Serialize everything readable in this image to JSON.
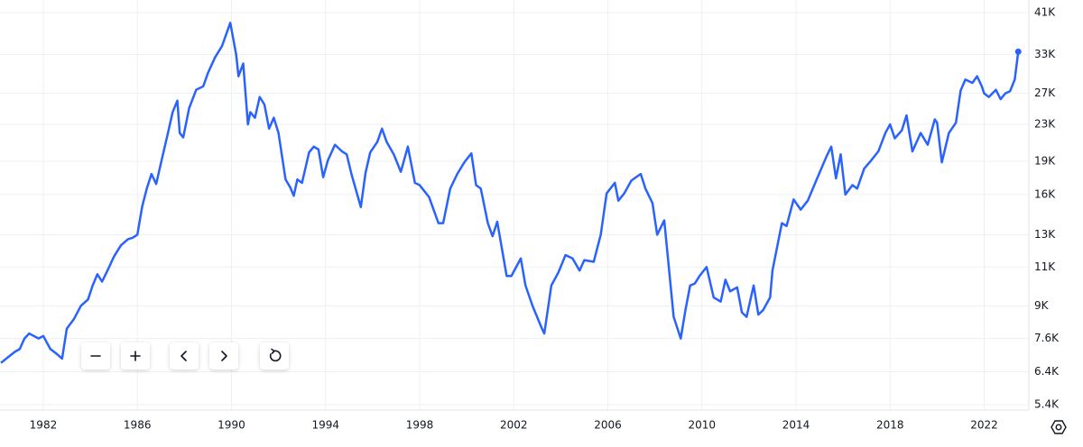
{
  "chart_data": {
    "type": "line",
    "log": true,
    "grid": true,
    "color": "#2962ff",
    "xlim": [
      1980.16,
      2023.9
    ],
    "xticks": [
      1982,
      1986,
      1990,
      1994,
      1998,
      2002,
      2006,
      2010,
      2014,
      2018,
      2022
    ],
    "ylim": [
      5250,
      43760
    ],
    "yticks": [
      {
        "value": 5400,
        "label": "5.4K"
      },
      {
        "value": 6400,
        "label": "6.4K"
      },
      {
        "value": 7600,
        "label": "7.6K"
      },
      {
        "value": 9000,
        "label": "9K"
      },
      {
        "value": 11000,
        "label": "11K"
      },
      {
        "value": 13000,
        "label": "13K"
      },
      {
        "value": 16000,
        "label": "16K"
      },
      {
        "value": 19000,
        "label": "19K"
      },
      {
        "value": 23000,
        "label": "23K"
      },
      {
        "value": 27000,
        "label": "27K"
      },
      {
        "value": 33000,
        "label": "33K"
      },
      {
        "value": 41000,
        "label": "41K"
      }
    ],
    "x": [
      1980.2,
      1980.5,
      1980.8,
      1981.0,
      1981.2,
      1981.4,
      1981.6,
      1981.8,
      1982.0,
      1982.3,
      1982.6,
      1982.8,
      1983.0,
      1983.3,
      1983.6,
      1983.9,
      1984.1,
      1984.3,
      1984.5,
      1984.8,
      1985.0,
      1985.3,
      1985.6,
      1985.8,
      1986.0,
      1986.2,
      1986.4,
      1986.6,
      1986.8,
      1987.0,
      1987.3,
      1987.5,
      1987.7,
      1987.8,
      1987.95,
      1988.2,
      1988.5,
      1988.8,
      1989.0,
      1989.3,
      1989.6,
      1989.95,
      1990.2,
      1990.3,
      1990.5,
      1990.7,
      1990.8,
      1991.0,
      1991.2,
      1991.4,
      1991.6,
      1991.8,
      1992.0,
      1992.3,
      1992.5,
      1992.65,
      1992.8,
      1993.0,
      1993.3,
      1993.5,
      1993.7,
      1993.9,
      1994.1,
      1994.4,
      1994.7,
      1994.9,
      1995.1,
      1995.5,
      1995.7,
      1995.9,
      1996.2,
      1996.4,
      1996.6,
      1996.9,
      1997.2,
      1997.5,
      1997.8,
      1998.0,
      1998.4,
      1998.8,
      1999.0,
      1999.3,
      1999.6,
      1999.9,
      2000.2,
      2000.4,
      2000.6,
      2000.9,
      2001.1,
      2001.3,
      2001.7,
      2001.9,
      2002.3,
      2002.5,
      2002.8,
      2003.2,
      2003.3,
      2003.6,
      2003.9,
      2004.2,
      2004.5,
      2004.8,
      2005.0,
      2005.4,
      2005.7,
      2005.95,
      2006.3,
      2006.45,
      2006.7,
      2007.0,
      2007.4,
      2007.6,
      2007.9,
      2008.1,
      2008.4,
      2008.8,
      2009.1,
      2009.3,
      2009.5,
      2009.7,
      2009.9,
      2010.2,
      2010.5,
      2010.8,
      2011.0,
      2011.2,
      2011.5,
      2011.7,
      2011.9,
      2012.2,
      2012.4,
      2012.6,
      2012.9,
      2013.0,
      2013.4,
      2013.6,
      2013.9,
      2014.2,
      2014.5,
      2014.9,
      2015.3,
      2015.5,
      2015.7,
      2015.9,
      2016.1,
      2016.4,
      2016.6,
      2016.9,
      2017.2,
      2017.5,
      2017.8,
      2018.0,
      2018.2,
      2018.5,
      2018.7,
      2018.95,
      2019.3,
      2019.6,
      2019.9,
      2020.0,
      2020.2,
      2020.5,
      2020.8,
      2021.0,
      2021.2,
      2021.5,
      2021.7,
      2021.9,
      2022.0,
      2022.2,
      2022.5,
      2022.7,
      2022.9,
      2023.1,
      2023.3,
      2023.45
    ],
    "values": [
      6700,
      6900,
      7100,
      7200,
      7600,
      7800,
      7700,
      7600,
      7700,
      7200,
      7000,
      6850,
      8000,
      8400,
      9000,
      9300,
      10000,
      10600,
      10200,
      11000,
      11600,
      12300,
      12700,
      12800,
      13000,
      15000,
      16500,
      17800,
      16900,
      18800,
      22000,
      24500,
      26000,
      22000,
      21500,
      25000,
      27500,
      28000,
      30000,
      32500,
      34500,
      38900,
      33000,
      29500,
      31500,
      23000,
      24500,
      23800,
      26500,
      25500,
      22500,
      23800,
      22000,
      17300,
      16600,
      15900,
      17300,
      17000,
      19900,
      20500,
      20200,
      17500,
      19100,
      20700,
      20000,
      19700,
      17800,
      15000,
      17900,
      19900,
      21000,
      22500,
      21000,
      19700,
      18000,
      20500,
      17000,
      16800,
      15800,
      13800,
      13800,
      16500,
      17800,
      18900,
      19800,
      16800,
      16500,
      13800,
      12900,
      13900,
      10500,
      10500,
      11500,
      10000,
      9000,
      8000,
      7800,
      10000,
      10700,
      11700,
      11500,
      10800,
      11400,
      11300,
      13000,
      16100,
      17000,
      15500,
      16100,
      17200,
      17800,
      16500,
      15300,
      13000,
      14000,
      8500,
      7600,
      8800,
      10000,
      10100,
      10500,
      11000,
      9400,
      9200,
      10300,
      9700,
      9900,
      8700,
      8500,
      10000,
      8600,
      8800,
      9400,
      10800,
      13800,
      13600,
      15600,
      14800,
      15500,
      17400,
      19500,
      20500,
      17400,
      19700,
      16000,
      16800,
      16500,
      18300,
      19100,
      20000,
      22000,
      23000,
      21400,
      22300,
      24100,
      20000,
      22000,
      20700,
      23600,
      23200,
      18900,
      22000,
      23200,
      27400,
      29000,
      28500,
      29500,
      28000,
      27000,
      26500,
      27500,
      26200,
      27000,
      27300,
      29000,
      33500
    ]
  }
}
